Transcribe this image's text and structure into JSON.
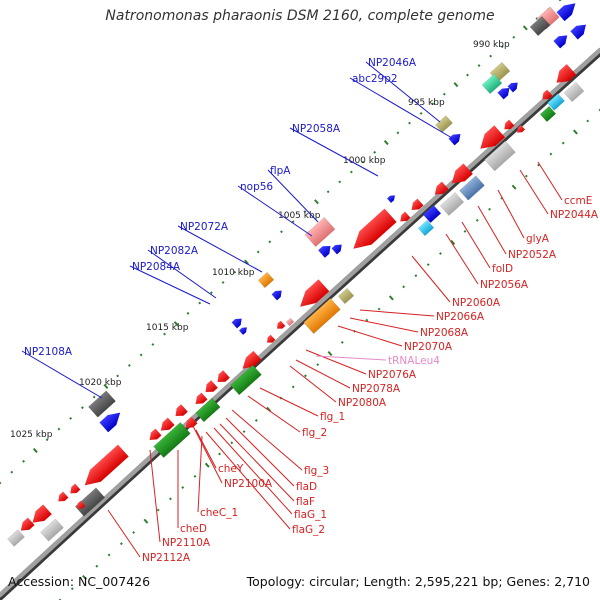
{
  "title": "Natronomonas pharaonis DSM 2160, complete genome",
  "footer": {
    "accession": "Accession: NC_007426",
    "summary": "Topology: circular; Length: 2,595,221 bp; Genes: 2,710"
  },
  "colors": {
    "backbone": "#8c8c8c",
    "plus_label": "#1a1acc",
    "minus_label": "#d62222",
    "rna_label": "#e589c9",
    "tick": "#2e7d2e"
  },
  "ticks": [
    "990 kbp",
    "995 kbp",
    "1000 kbp",
    "1005 kbp",
    "1010 kbp",
    "1015 kbp",
    "1020 kbp",
    "1025 kbp"
  ],
  "plus_labels": [
    "NP2046A",
    "abc29p2",
    "NP2058A",
    "flpA",
    "nop56",
    "NP2072A",
    "NP2082A",
    "NP2084A",
    "NP2108A"
  ],
  "minus_labels": [
    "ccmE",
    "NP2044A",
    "glyA",
    "NP2052A",
    "folD",
    "NP2056A",
    "NP2060A",
    "NP2066A",
    "NP2068A",
    "NP2070A",
    "NP2076A",
    "NP2078A",
    "NP2080A",
    "flg_1",
    "flg_2",
    "flg_3",
    "flaD",
    "flaF",
    "flaG_1",
    "flaG_2",
    "NP2100A",
    "cheY",
    "cheC_1",
    "cheD",
    "NP2110A",
    "NP2112A"
  ],
  "rna_labels": [
    "tRNALeu4"
  ]
}
